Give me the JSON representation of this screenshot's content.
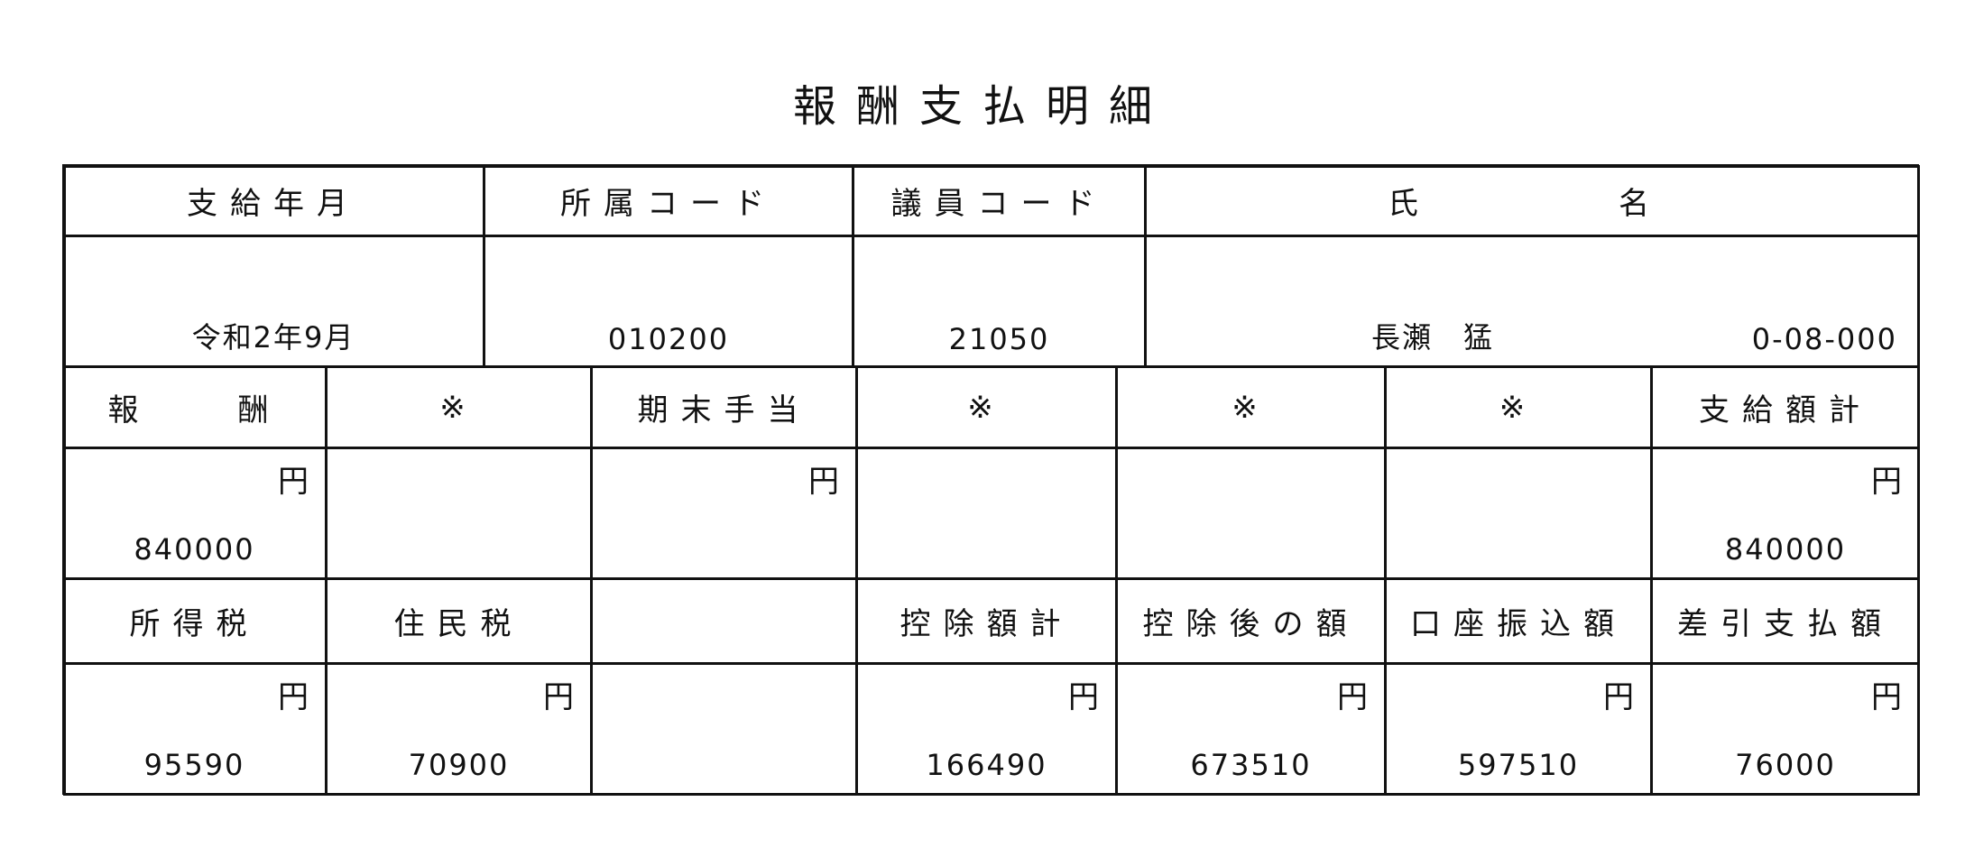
{
  "title": "報酬支払明細",
  "header_row1": {
    "labels": [
      "支給年月",
      "所属コード",
      "議員コード",
      "氏　　　名"
    ],
    "values": {
      "pay_month": "令和2年9月",
      "affiliation_code": "010200",
      "member_code": "21050",
      "name": "長瀬　猛",
      "name_code": "0-08-000"
    }
  },
  "payments": {
    "labels": [
      "報　　酬",
      "※",
      "期末手当",
      "※",
      "※",
      "※",
      "支給額計"
    ],
    "values": [
      "840000",
      "",
      "",
      "",
      "",
      "",
      "840000"
    ],
    "yen": [
      "円",
      "",
      "円",
      "",
      "",
      "",
      "円"
    ]
  },
  "deductions": {
    "labels": [
      "所得税",
      "住民税",
      "",
      "控除額計",
      "控除後の額",
      "口座振込額",
      "差引支払額"
    ],
    "values": [
      "95590",
      "70900",
      "",
      "166490",
      "673510",
      "597510",
      "76000"
    ],
    "yen": [
      "円",
      "円",
      "",
      "円",
      "円",
      "円",
      "円"
    ]
  }
}
